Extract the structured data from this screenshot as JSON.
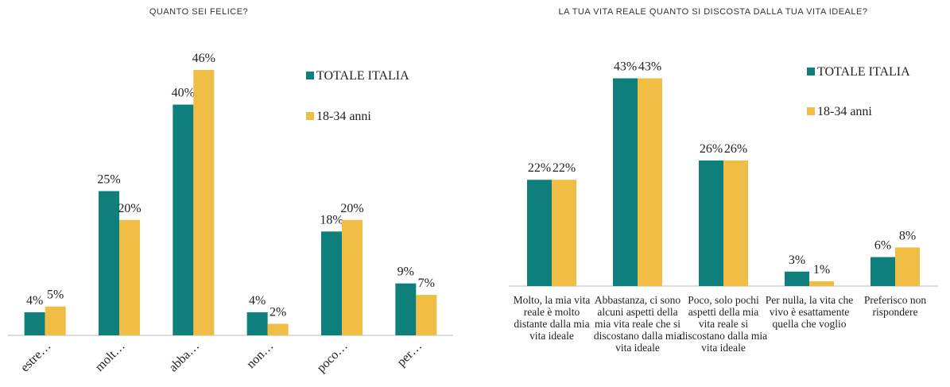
{
  "chart_data": [
    {
      "type": "bar",
      "title": "QUANTO SEI FELICE?",
      "categories": [
        "estre…",
        "molt…",
        "abba…",
        "non…",
        "poco…",
        "per…"
      ],
      "series": [
        {
          "name": "TOTALE ITALIA",
          "color": "#0e7f7a",
          "values": [
            4,
            25,
            40,
            4,
            18,
            9
          ],
          "value_labels": [
            "4%",
            "25%",
            "40%",
            "4%",
            "18%",
            "9%"
          ]
        },
        {
          "name": "18-34 anni",
          "color": "#f0bd45",
          "values": [
            5,
            20,
            46,
            2,
            20,
            7
          ],
          "value_labels": [
            "5%",
            "20%",
            "46%",
            "2%",
            "20%",
            "7%"
          ]
        }
      ],
      "ylim": [
        0,
        50
      ]
    },
    {
      "type": "bar",
      "title": "LA TUA VITA REALE QUANTO SI DISCOSTA DALLA TUA VITA IDEALE?",
      "categories": [
        "Molto, la mia vita reale è molto distante dalla mia vita ideale",
        "Abbastanza, ci sono alcuni aspetti della mia vita reale che si discostano dalla mia vita ideale",
        "Poco, solo pochi aspetti della mia vita reale si discostano dalla mia vita ideale",
        "Per nulla, la vita che vivo è esattamente quella che voglio",
        "Preferisco non rispondere"
      ],
      "series": [
        {
          "name": "TOTALE ITALIA",
          "color": "#0e7f7a",
          "values": [
            22,
            43,
            26,
            3,
            6
          ],
          "value_labels": [
            "22%",
            "43%",
            "26%",
            "3%",
            "6%"
          ]
        },
        {
          "name": "18-34 anni",
          "color": "#f0bd45",
          "values": [
            22,
            43,
            26,
            1,
            8
          ],
          "value_labels": [
            "22%",
            "43%",
            "26%",
            "1%",
            "8%"
          ]
        }
      ],
      "ylim": [
        0,
        50
      ]
    }
  ]
}
